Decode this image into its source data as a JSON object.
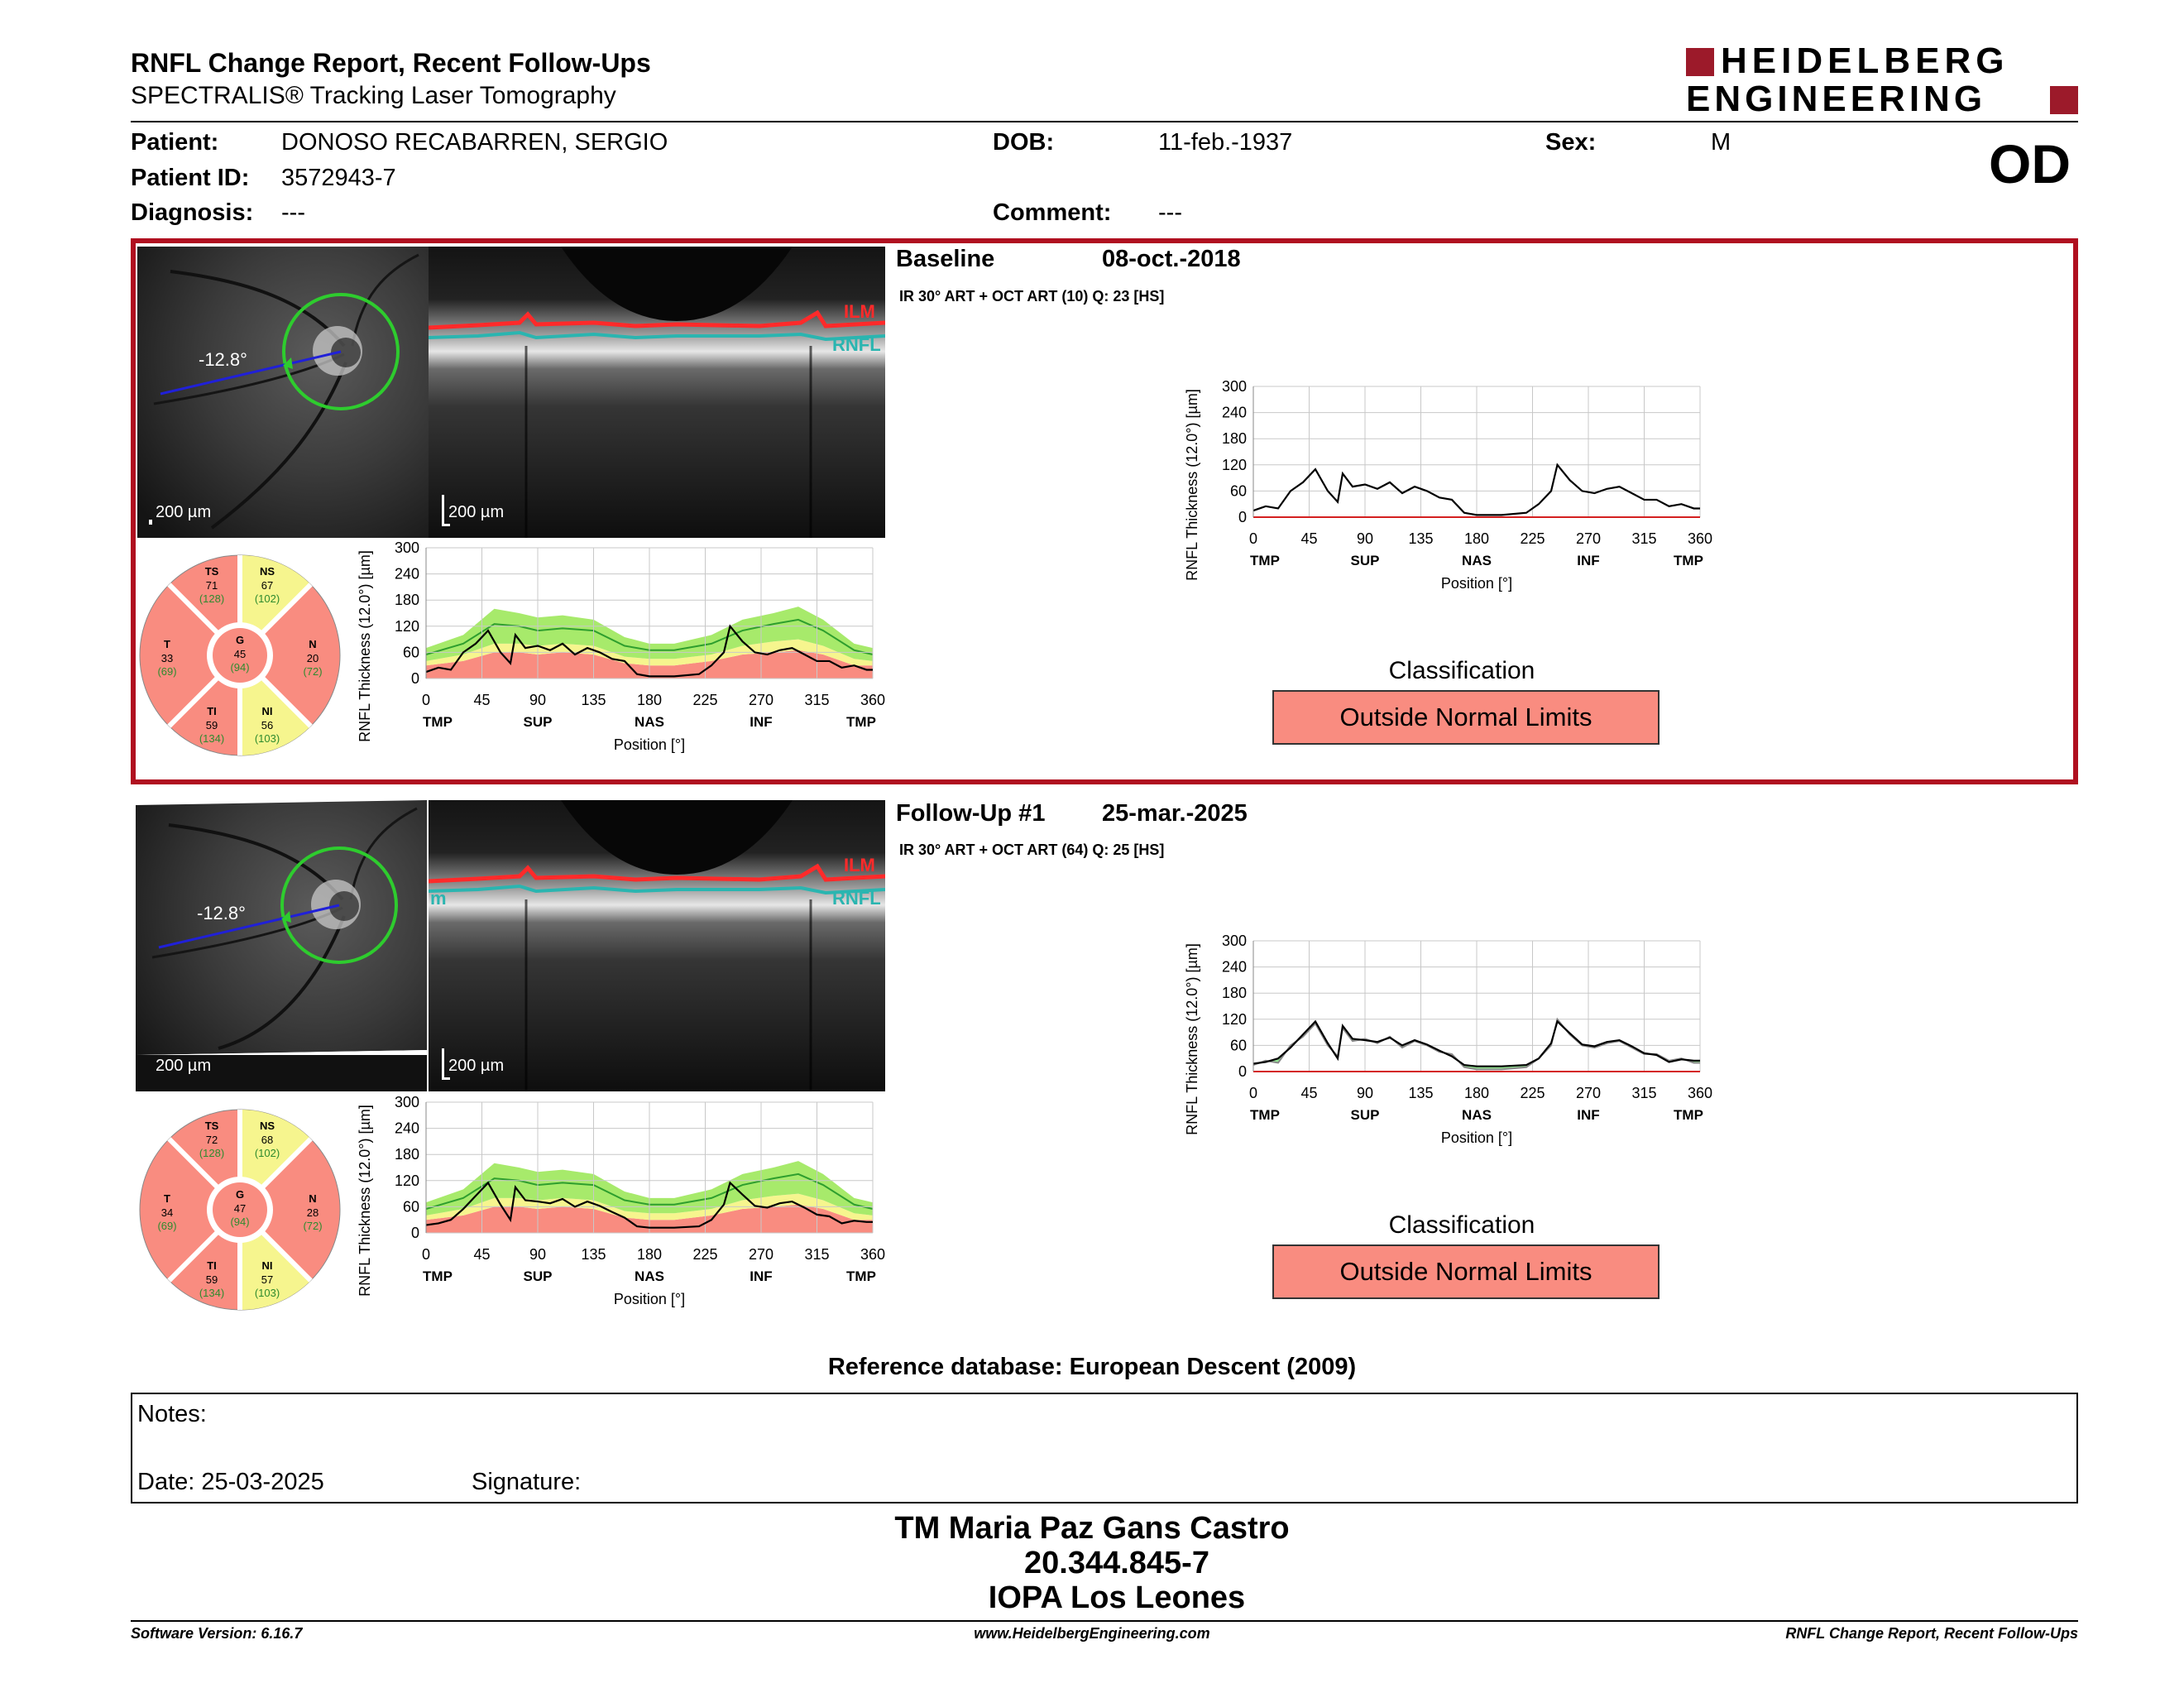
{
  "header": {
    "title": "RNFL Change Report, Recent Follow-Ups",
    "subtitle": "SPECTRALIS® Tracking Laser Tomography",
    "logo_line1": "HEIDELBERG",
    "logo_line2": "ENGINEERING",
    "eye": "OD"
  },
  "patient": {
    "name_label": "Patient:",
    "name": "DONOSO RECABARREN, SERGIO",
    "id_label": "Patient ID:",
    "id": "3572943-7",
    "diagnosis_label": "Diagnosis:",
    "diagnosis": "---",
    "dob_label": "DOB:",
    "dob": "11-feb.-1937",
    "comment_label": "Comment:",
    "comment": "---",
    "sex_label": "Sex:",
    "sex": "M"
  },
  "exams": [
    {
      "label": "Baseline",
      "date": "08-oct.-2018",
      "protocol": "IR 30° ART + OCT ART (10) Q: 23 [HS]",
      "angle": "-12.8°",
      "scale_fundus": "200 µm",
      "scale_oct": "200 µm",
      "ilm": "ILM",
      "rnfl": "RNFL",
      "sectors": {
        "TS": {
          "name": "TS",
          "value": "71",
          "ref": "(128)"
        },
        "NS": {
          "name": "NS",
          "value": "67",
          "ref": "(102)"
        },
        "T": {
          "name": "T",
          "value": "33",
          "ref": "(69)"
        },
        "G": {
          "name": "G",
          "value": "45",
          "ref": "(94)"
        },
        "N": {
          "name": "N",
          "value": "20",
          "ref": "(72)"
        },
        "TI": {
          "name": "TI",
          "value": "59",
          "ref": "(134)"
        },
        "NI": {
          "name": "NI",
          "value": "56",
          "ref": "(103)"
        }
      },
      "classification_title": "Classification",
      "classification": "Outside Normal Limits"
    },
    {
      "label": "Follow-Up #1",
      "date": "25-mar.-2025",
      "protocol": "IR 30° ART + OCT ART (64) Q: 25 [HS]",
      "angle": "-12.8°",
      "scale_fundus": "200 µm",
      "scale_oct": "200 µm",
      "ilm": "ILM",
      "rnfl": "RNFL",
      "rnfl_left_fragment": "m",
      "sectors": {
        "TS": {
          "name": "TS",
          "value": "72",
          "ref": "(128)"
        },
        "NS": {
          "name": "NS",
          "value": "68",
          "ref": "(102)"
        },
        "T": {
          "name": "T",
          "value": "34",
          "ref": "(69)"
        },
        "G": {
          "name": "G",
          "value": "47",
          "ref": "(94)"
        },
        "N": {
          "name": "N",
          "value": "28",
          "ref": "(72)"
        },
        "TI": {
          "name": "TI",
          "value": "59",
          "ref": "(134)"
        },
        "NI": {
          "name": "NI",
          "value": "57",
          "ref": "(103)"
        }
      },
      "classification_title": "Classification",
      "classification": "Outside Normal Limits"
    }
  ],
  "chart_data": [
    {
      "type": "line",
      "ylabel": "RNFL Thickness (12.0°) [µm]",
      "xlabel": "Position [°]",
      "x_ticks": [
        0,
        45,
        90,
        135,
        180,
        225,
        270,
        315,
        360
      ],
      "x_tick_labels": [
        "0",
        "45",
        "90",
        "135",
        "180",
        "225",
        "270",
        "315",
        "360"
      ],
      "x_region_labels": [
        "TMP",
        "SUP",
        "NAS",
        "INF",
        "TMP"
      ],
      "x_region_positions": [
        0,
        90,
        180,
        270,
        360
      ],
      "y_ticks": [
        0,
        60,
        120,
        180,
        240,
        300
      ],
      "ylim": [
        0,
        300
      ],
      "xlim": [
        0,
        360
      ],
      "normative_upper": [
        [
          0,
          70
        ],
        [
          30,
          100
        ],
        [
          55,
          160
        ],
        [
          75,
          150
        ],
        [
          90,
          140
        ],
        [
          110,
          145
        ],
        [
          135,
          135
        ],
        [
          160,
          95
        ],
        [
          180,
          80
        ],
        [
          200,
          80
        ],
        [
          230,
          100
        ],
        [
          255,
          135
        ],
        [
          280,
          150
        ],
        [
          300,
          165
        ],
        [
          320,
          135
        ],
        [
          345,
          80
        ],
        [
          360,
          70
        ]
      ],
      "normative_mid": [
        [
          0,
          55
        ],
        [
          30,
          80
        ],
        [
          55,
          125
        ],
        [
          75,
          120
        ],
        [
          90,
          110
        ],
        [
          110,
          115
        ],
        [
          135,
          110
        ],
        [
          160,
          75
        ],
        [
          180,
          65
        ],
        [
          200,
          65
        ],
        [
          230,
          80
        ],
        [
          255,
          110
        ],
        [
          280,
          125
        ],
        [
          300,
          135
        ],
        [
          320,
          110
        ],
        [
          345,
          65
        ],
        [
          360,
          55
        ]
      ],
      "borderline_low": [
        [
          0,
          40
        ],
        [
          30,
          55
        ],
        [
          55,
          80
        ],
        [
          75,
          80
        ],
        [
          90,
          75
        ],
        [
          110,
          80
        ],
        [
          135,
          75
        ],
        [
          160,
          50
        ],
        [
          180,
          45
        ],
        [
          200,
          45
        ],
        [
          230,
          55
        ],
        [
          255,
          75
        ],
        [
          280,
          85
        ],
        [
          300,
          90
        ],
        [
          320,
          75
        ],
        [
          345,
          45
        ],
        [
          360,
          40
        ]
      ],
      "abnormal_low": [
        [
          0,
          30
        ],
        [
          30,
          40
        ],
        [
          55,
          60
        ],
        [
          75,
          60
        ],
        [
          90,
          55
        ],
        [
          110,
          60
        ],
        [
          135,
          55
        ],
        [
          160,
          35
        ],
        [
          180,
          30
        ],
        [
          200,
          30
        ],
        [
          230,
          40
        ],
        [
          255,
          55
        ],
        [
          280,
          60
        ],
        [
          300,
          65
        ],
        [
          320,
          55
        ],
        [
          345,
          30
        ],
        [
          360,
          30
        ]
      ],
      "measured": [
        [
          0,
          15
        ],
        [
          10,
          25
        ],
        [
          20,
          20
        ],
        [
          30,
          60
        ],
        [
          40,
          80
        ],
        [
          50,
          110
        ],
        [
          60,
          60
        ],
        [
          68,
          35
        ],
        [
          72,
          100
        ],
        [
          80,
          70
        ],
        [
          90,
          75
        ],
        [
          100,
          65
        ],
        [
          110,
          80
        ],
        [
          120,
          55
        ],
        [
          130,
          70
        ],
        [
          140,
          60
        ],
        [
          150,
          45
        ],
        [
          160,
          40
        ],
        [
          170,
          10
        ],
        [
          180,
          5
        ],
        [
          200,
          5
        ],
        [
          220,
          10
        ],
        [
          230,
          30
        ],
        [
          240,
          60
        ],
        [
          245,
          120
        ],
        [
          255,
          85
        ],
        [
          265,
          60
        ],
        [
          275,
          55
        ],
        [
          285,
          65
        ],
        [
          295,
          70
        ],
        [
          305,
          55
        ],
        [
          315,
          40
        ],
        [
          325,
          40
        ],
        [
          335,
          25
        ],
        [
          345,
          30
        ],
        [
          355,
          20
        ],
        [
          360,
          20
        ]
      ]
    },
    {
      "type": "line",
      "title": "",
      "ylabel": "RNFL Thickness (12.0°) [µm]",
      "xlabel": "Position [°]",
      "x_ticks": [
        0,
        45,
        90,
        135,
        180,
        225,
        270,
        315,
        360
      ],
      "x_tick_labels": [
        "0",
        "45",
        "90",
        "135",
        "180",
        "225",
        "270",
        "315",
        "360"
      ],
      "x_region_labels": [
        "TMP",
        "SUP",
        "NAS",
        "INF",
        "TMP"
      ],
      "x_region_positions": [
        0,
        90,
        180,
        270,
        360
      ],
      "y_ticks": [
        0,
        60,
        120,
        180,
        240,
        300
      ],
      "ylim": [
        0,
        300
      ],
      "xlim": [
        0,
        360
      ],
      "measured": [
        [
          0,
          15
        ],
        [
          10,
          25
        ],
        [
          20,
          20
        ],
        [
          30,
          60
        ],
        [
          40,
          80
        ],
        [
          50,
          110
        ],
        [
          60,
          60
        ],
        [
          68,
          35
        ],
        [
          72,
          100
        ],
        [
          80,
          70
        ],
        [
          90,
          75
        ],
        [
          100,
          65
        ],
        [
          110,
          80
        ],
        [
          120,
          55
        ],
        [
          130,
          70
        ],
        [
          140,
          60
        ],
        [
          150,
          45
        ],
        [
          160,
          40
        ],
        [
          170,
          10
        ],
        [
          180,
          5
        ],
        [
          200,
          5
        ],
        [
          220,
          10
        ],
        [
          230,
          30
        ],
        [
          240,
          60
        ],
        [
          245,
          120
        ],
        [
          255,
          85
        ],
        [
          265,
          60
        ],
        [
          275,
          55
        ],
        [
          285,
          65
        ],
        [
          295,
          70
        ],
        [
          305,
          55
        ],
        [
          315,
          40
        ],
        [
          325,
          40
        ],
        [
          335,
          25
        ],
        [
          345,
          30
        ],
        [
          355,
          20
        ],
        [
          360,
          20
        ]
      ]
    },
    {
      "type": "line",
      "ylabel": "RNFL Thickness (12.0°) [µm]",
      "xlabel": "Position [°]",
      "x_ticks": [
        0,
        45,
        90,
        135,
        180,
        225,
        270,
        315,
        360
      ],
      "x_tick_labels": [
        "0",
        "45",
        "90",
        "135",
        "180",
        "225",
        "270",
        "315",
        "360"
      ],
      "x_region_labels": [
        "TMP",
        "SUP",
        "NAS",
        "INF",
        "TMP"
      ],
      "x_region_positions": [
        0,
        90,
        180,
        270,
        360
      ],
      "y_ticks": [
        0,
        60,
        120,
        180,
        240,
        300
      ],
      "ylim": [
        0,
        300
      ],
      "xlim": [
        0,
        360
      ],
      "measured": [
        [
          0,
          18
        ],
        [
          10,
          22
        ],
        [
          20,
          30
        ],
        [
          30,
          55
        ],
        [
          40,
          85
        ],
        [
          50,
          115
        ],
        [
          60,
          65
        ],
        [
          68,
          30
        ],
        [
          72,
          105
        ],
        [
          80,
          75
        ],
        [
          90,
          72
        ],
        [
          100,
          68
        ],
        [
          110,
          78
        ],
        [
          120,
          60
        ],
        [
          130,
          72
        ],
        [
          140,
          62
        ],
        [
          150,
          48
        ],
        [
          160,
          35
        ],
        [
          170,
          15
        ],
        [
          180,
          12
        ],
        [
          200,
          12
        ],
        [
          220,
          15
        ],
        [
          230,
          30
        ],
        [
          240,
          65
        ],
        [
          245,
          115
        ],
        [
          255,
          88
        ],
        [
          265,
          62
        ],
        [
          275,
          58
        ],
        [
          285,
          68
        ],
        [
          295,
          72
        ],
        [
          305,
          58
        ],
        [
          315,
          42
        ],
        [
          325,
          38
        ],
        [
          335,
          22
        ],
        [
          345,
          28
        ],
        [
          355,
          25
        ],
        [
          360,
          25
        ]
      ]
    },
    {
      "type": "line",
      "ylabel": "RNFL Thickness (12.0°) [µm]",
      "xlabel": "Position [°]",
      "x_ticks": [
        0,
        45,
        90,
        135,
        180,
        225,
        270,
        315,
        360
      ],
      "x_tick_labels": [
        "0",
        "45",
        "90",
        "135",
        "180",
        "225",
        "270",
        "315",
        "360"
      ],
      "x_region_labels": [
        "TMP",
        "SUP",
        "NAS",
        "INF",
        "TMP"
      ],
      "x_region_positions": [
        0,
        90,
        180,
        270,
        360
      ],
      "y_ticks": [
        0,
        60,
        120,
        180,
        240,
        300
      ],
      "ylim": [
        0,
        300
      ],
      "xlim": [
        0,
        360
      ],
      "baseline": [
        [
          0,
          15
        ],
        [
          10,
          25
        ],
        [
          20,
          20
        ],
        [
          30,
          60
        ],
        [
          40,
          80
        ],
        [
          50,
          110
        ],
        [
          60,
          60
        ],
        [
          68,
          35
        ],
        [
          72,
          100
        ],
        [
          80,
          70
        ],
        [
          90,
          75
        ],
        [
          100,
          65
        ],
        [
          110,
          80
        ],
        [
          120,
          55
        ],
        [
          130,
          70
        ],
        [
          140,
          60
        ],
        [
          150,
          45
        ],
        [
          160,
          40
        ],
        [
          170,
          10
        ],
        [
          180,
          5
        ],
        [
          200,
          5
        ],
        [
          220,
          10
        ],
        [
          230,
          30
        ],
        [
          240,
          60
        ],
        [
          245,
          120
        ],
        [
          255,
          85
        ],
        [
          265,
          60
        ],
        [
          275,
          55
        ],
        [
          285,
          65
        ],
        [
          295,
          70
        ],
        [
          305,
          55
        ],
        [
          315,
          40
        ],
        [
          325,
          40
        ],
        [
          335,
          25
        ],
        [
          345,
          30
        ],
        [
          355,
          20
        ],
        [
          360,
          20
        ]
      ],
      "measured": [
        [
          0,
          18
        ],
        [
          10,
          22
        ],
        [
          20,
          30
        ],
        [
          30,
          55
        ],
        [
          40,
          85
        ],
        [
          50,
          115
        ],
        [
          60,
          65
        ],
        [
          68,
          30
        ],
        [
          72,
          105
        ],
        [
          80,
          75
        ],
        [
          90,
          72
        ],
        [
          100,
          68
        ],
        [
          110,
          78
        ],
        [
          120,
          60
        ],
        [
          130,
          72
        ],
        [
          140,
          62
        ],
        [
          150,
          48
        ],
        [
          160,
          35
        ],
        [
          170,
          15
        ],
        [
          180,
          12
        ],
        [
          200,
          12
        ],
        [
          220,
          15
        ],
        [
          230,
          30
        ],
        [
          240,
          65
        ],
        [
          245,
          115
        ],
        [
          255,
          88
        ],
        [
          265,
          62
        ],
        [
          275,
          58
        ],
        [
          285,
          68
        ],
        [
          295,
          72
        ],
        [
          305,
          58
        ],
        [
          315,
          42
        ],
        [
          325,
          38
        ],
        [
          335,
          22
        ],
        [
          345,
          28
        ],
        [
          355,
          25
        ],
        [
          360,
          25
        ]
      ]
    }
  ],
  "reference_db": "Reference database: European Descent (2009)",
  "notes": {
    "notes_label": "Notes:",
    "date_label": "Date: 25-03-2025",
    "signature_label": "Signature:"
  },
  "signature_block": {
    "name": "TM Maria Paz Gans Castro",
    "rut": "20.344.845-7",
    "institution": "IOPA Los Leones"
  },
  "footer": {
    "version": "Software Version: 6.16.7",
    "website": "www.HeidelbergEngineering.com",
    "report": "RNFL Change Report, Recent Follow-Ups"
  },
  "colors": {
    "frame_red": "#b01020",
    "normal_green": "#a7ea6b",
    "borderline_yellow": "#f6f58e",
    "outside_red": "#f98c80",
    "ilm_red": "#ff2a2a",
    "rnfl_cyan": "#2ab5b0",
    "circle_green": "#2ecc2e"
  }
}
